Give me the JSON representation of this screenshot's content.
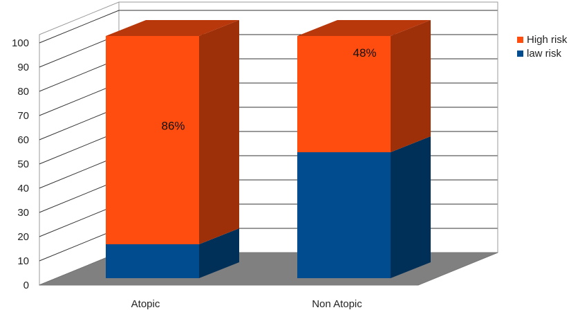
{
  "chart_data": {
    "type": "bar",
    "stacked": true,
    "three_d": true,
    "categories": [
      "Atopic",
      "Non Atopic"
    ],
    "series": [
      {
        "name": "law risk",
        "values": [
          14,
          52
        ],
        "color": "#004c8e"
      },
      {
        "name": "High risk",
        "values": [
          86,
          48
        ],
        "color": "#ff4d0f"
      }
    ],
    "data_labels": [
      "86%",
      "48%"
    ],
    "yticks": [
      "0",
      "10",
      "20",
      "30",
      "40",
      "50",
      "60",
      "70",
      "80",
      "90",
      "100"
    ],
    "ylim": [
      0,
      100
    ],
    "grid": true,
    "legend_position": "top-right"
  },
  "legend": [
    {
      "label": "High risk",
      "color": "#ff4d0f"
    },
    {
      "label": "law risk",
      "color": "#004c8e"
    }
  ]
}
